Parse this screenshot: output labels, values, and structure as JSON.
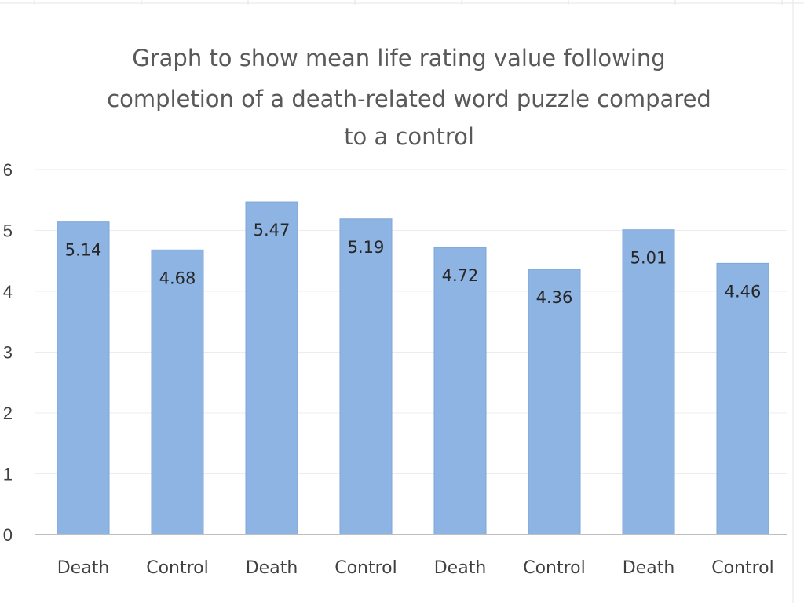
{
  "chart_data": {
    "type": "bar",
    "title_lines": [
      "Graph to show mean life rating value following",
      "completion of a death-related word puzzle compared",
      "to a control"
    ],
    "categories": [
      "Death",
      "Control",
      "Death",
      "Control",
      "Death",
      "Control",
      "Death",
      "Control"
    ],
    "values": [
      5.14,
      4.68,
      5.47,
      5.19,
      4.72,
      4.36,
      5.01,
      4.46
    ],
    "data_labels": [
      "5.14",
      "4.68",
      "5.47",
      "5.19",
      "4.72",
      "4.36",
      "5.01",
      "4.46"
    ],
    "y_ticks": [
      "0",
      "1",
      "2",
      "3",
      "4",
      "5",
      "6"
    ],
    "ylim": [
      0,
      6
    ],
    "grid": true,
    "legend": "none",
    "bar_color": "#8eb4e3",
    "xlabel": "",
    "ylabel": ""
  }
}
